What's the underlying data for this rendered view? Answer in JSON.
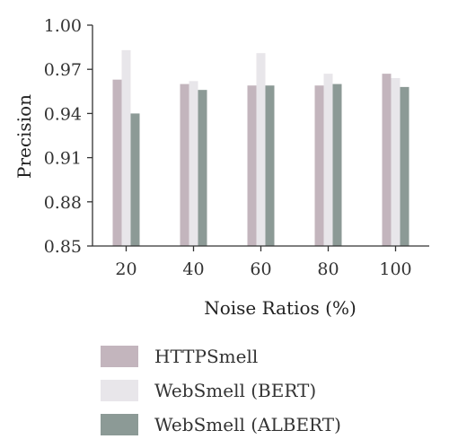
{
  "chart_data": {
    "type": "bar",
    "categories": [
      "20",
      "40",
      "60",
      "80",
      "100"
    ],
    "series": [
      {
        "name": "HTTPSmell",
        "values": [
          0.963,
          0.96,
          0.959,
          0.959,
          0.967
        ],
        "color": "#c3b5bd"
      },
      {
        "name": "WebSmell (BERT)",
        "values": [
          0.983,
          0.962,
          0.981,
          0.967,
          0.964
        ],
        "color": "#e8e6ea"
      },
      {
        "name": "WebSmell (ALBERT)",
        "values": [
          0.94,
          0.956,
          0.959,
          0.96,
          0.958
        ],
        "color": "#8c9a96"
      }
    ],
    "ylim": [
      0.85,
      1.0
    ],
    "yticks": [
      "0.85",
      "0.88",
      "0.91",
      "0.94",
      "0.97",
      "1.00"
    ],
    "ytick_values": [
      0.85,
      0.88,
      0.91,
      0.94,
      0.97,
      1.0
    ],
    "xlabel": "Noise Ratios (%)",
    "ylabel": "Precision",
    "legend_position": "bottom",
    "grid": false
  }
}
